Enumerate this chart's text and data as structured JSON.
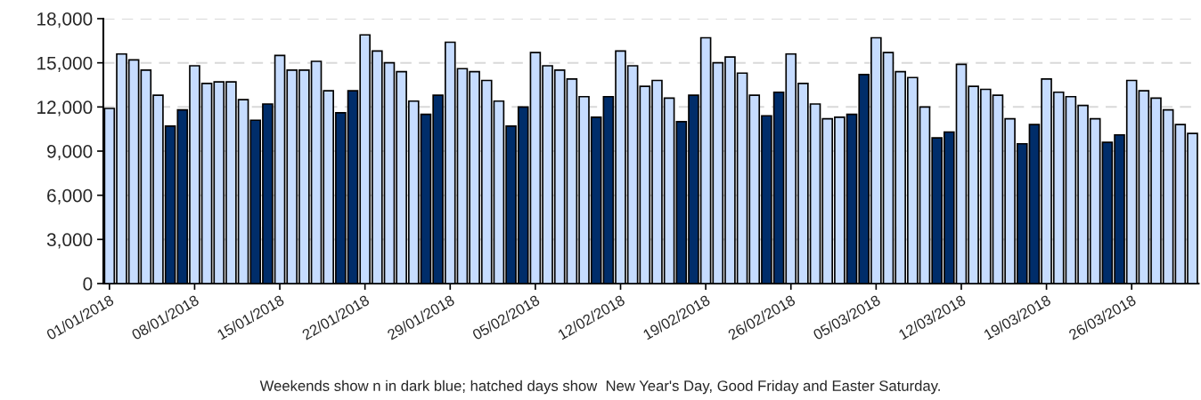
{
  "chart_data": {
    "type": "bar",
    "categories": [
      "01/01/2018",
      null,
      null,
      null,
      null,
      null,
      null,
      "08/01/2018",
      null,
      null,
      null,
      null,
      null,
      null,
      "15/01/2018",
      null,
      null,
      null,
      null,
      null,
      null,
      "22/01/2018",
      null,
      null,
      null,
      null,
      null,
      null,
      "29/01/2018",
      null,
      null,
      null,
      null,
      null,
      null,
      "05/02/2018",
      null,
      null,
      null,
      null,
      null,
      null,
      "12/02/2018",
      null,
      null,
      null,
      null,
      null,
      null,
      "19/02/2018",
      null,
      null,
      null,
      null,
      null,
      null,
      "26/02/2018",
      null,
      null,
      null,
      null,
      null,
      null,
      "05/03/2018",
      null,
      null,
      null,
      null,
      null,
      null,
      "12/03/2018",
      null,
      null,
      null,
      null,
      null,
      null,
      "19/03/2018",
      null,
      null,
      null,
      null,
      null,
      null,
      "26/03/2018",
      null,
      null,
      null,
      null,
      null
    ],
    "values": [
      11900,
      15600,
      15200,
      14500,
      12800,
      10700,
      11800,
      14800,
      13600,
      13700,
      13700,
      12500,
      11100,
      12200,
      15500,
      14500,
      14500,
      15100,
      13100,
      11600,
      13100,
      16900,
      15800,
      15000,
      14400,
      12400,
      11500,
      12800,
      16400,
      14600,
      14400,
      13800,
      12400,
      10700,
      12000,
      15700,
      14800,
      14500,
      13900,
      12700,
      11300,
      12700,
      15800,
      14800,
      13400,
      13800,
      12600,
      11000,
      12800,
      16700,
      15000,
      15400,
      14300,
      12800,
      11400,
      13000,
      15600,
      13600,
      12200,
      11200,
      11300,
      11500,
      14200,
      16700,
      15700,
      14400,
      14000,
      12000,
      9900,
      10300,
      14900,
      13400,
      13200,
      12800,
      11200,
      9500,
      10800,
      13900,
      13000,
      12700,
      12100,
      11200,
      9600,
      10100,
      13800,
      13100,
      12600,
      11800,
      10800,
      10200
    ],
    "colors": [
      "#c6dcff",
      "#c6dcff",
      "#c6dcff",
      "#c6dcff",
      "#c6dcff",
      "#002d6a",
      "#002d6a",
      "#c6dcff",
      "#c6dcff",
      "#c6dcff",
      "#c6dcff",
      "#c6dcff",
      "#002d6a",
      "#002d6a",
      "#c6dcff",
      "#c6dcff",
      "#c6dcff",
      "#c6dcff",
      "#c6dcff",
      "#002d6a",
      "#002d6a",
      "#c6dcff",
      "#c6dcff",
      "#c6dcff",
      "#c6dcff",
      "#c6dcff",
      "#002d6a",
      "#002d6a",
      "#c6dcff",
      "#c6dcff",
      "#c6dcff",
      "#c6dcff",
      "#c6dcff",
      "#002d6a",
      "#002d6a",
      "#c6dcff",
      "#c6dcff",
      "#c6dcff",
      "#c6dcff",
      "#c6dcff",
      "#002d6a",
      "#002d6a",
      "#c6dcff",
      "#c6dcff",
      "#c6dcff",
      "#c6dcff",
      "#c6dcff",
      "#002d6a",
      "#002d6a",
      "#c6dcff",
      "#c6dcff",
      "#c6dcff",
      "#c6dcff",
      "#c6dcff",
      "#002d6a",
      "#002d6a",
      "#c6dcff",
      "#c6dcff",
      "#c6dcff",
      "#c6dcff",
      "#c6dcff",
      "#002d6a",
      "#002d6a",
      "#c6dcff",
      "#c6dcff",
      "#c6dcff",
      "#c6dcff",
      "#c6dcff",
      "#002d6a",
      "#002d6a",
      "#c6dcff",
      "#c6dcff",
      "#c6dcff",
      "#c6dcff",
      "#c6dcff",
      "#002d6a",
      "#002d6a",
      "#c6dcff",
      "#c6dcff",
      "#c6dcff",
      "#c6dcff",
      "#c6dcff",
      "#002d6a",
      "#002d6a",
      "#c6dcff",
      "#c6dcff",
      "#c6dcff",
      "#c6dcff",
      "#c6dcff",
      "#c6dcff"
    ],
    "ylim": [
      0,
      18000
    ],
    "yticks": [
      0,
      {
        "value": 3000,
        "label": "3,000"
      },
      {
        "value": 6000,
        "label": "6,000"
      },
      {
        "value": 9000,
        "label": "9,000"
      },
      {
        "value": 12000,
        "label": "12,000"
      },
      {
        "value": 15000,
        "label": "15,000"
      },
      {
        "value": 18000,
        "label": "18,000"
      }
    ],
    "grid": "y",
    "annotations": [
      "Weekends show n in dark blue; hatched days show  New Year's Day, Good Friday and Easter Saturday."
    ]
  }
}
